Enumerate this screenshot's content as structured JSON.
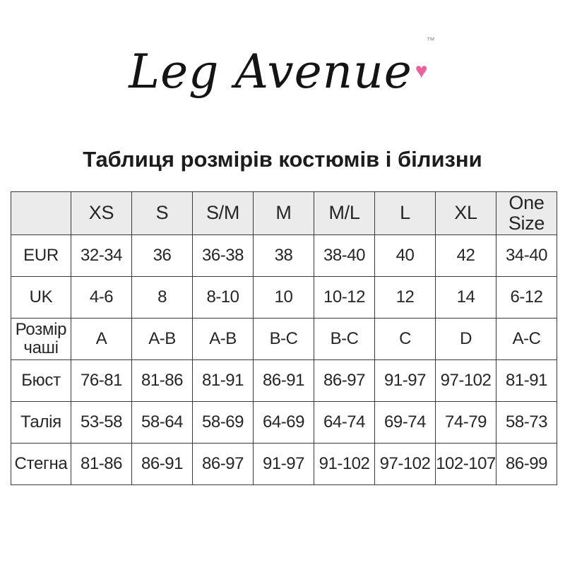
{
  "logo": {
    "text": "Leg Avenue",
    "tm": "™",
    "heart_icon": "♥",
    "heart_color": "#ee5f9e"
  },
  "title": "Таблиця розмірів костюмів і білизни",
  "table": {
    "corner_label": "",
    "columns": [
      "XS",
      "S",
      "S/M",
      "M",
      "M/L",
      "L",
      "XL",
      "One Size"
    ],
    "rows": [
      {
        "label": "EUR",
        "values": [
          "32-34",
          "36",
          "36-38",
          "38",
          "38-40",
          "40",
          "42",
          "34-40"
        ]
      },
      {
        "label": "UK",
        "values": [
          "4-6",
          "8",
          "8-10",
          "10",
          "10-12",
          "12",
          "14",
          "6-12"
        ]
      },
      {
        "label": "Розмір чаші",
        "values": [
          "A",
          "A-B",
          "A-B",
          "B-C",
          "B-C",
          "C",
          "D",
          "A-C"
        ]
      },
      {
        "label": "Бюст",
        "values": [
          "76-81",
          "81-86",
          "81-91",
          "86-91",
          "86-97",
          "91-97",
          "97-102",
          "81-91"
        ]
      },
      {
        "label": "Талія",
        "values": [
          "53-58",
          "58-64",
          "58-69",
          "64-69",
          "64-74",
          "69-74",
          "74-79",
          "58-73"
        ]
      },
      {
        "label": "Стегна",
        "values": [
          "81-86",
          "86-91",
          "86-97",
          "91-97",
          "91-102",
          "97-102",
          "102-107",
          "86-99"
        ]
      }
    ],
    "colors": {
      "header_bg": "#ebebeb",
      "border": "#3a3a3a",
      "text": "#262626"
    }
  }
}
